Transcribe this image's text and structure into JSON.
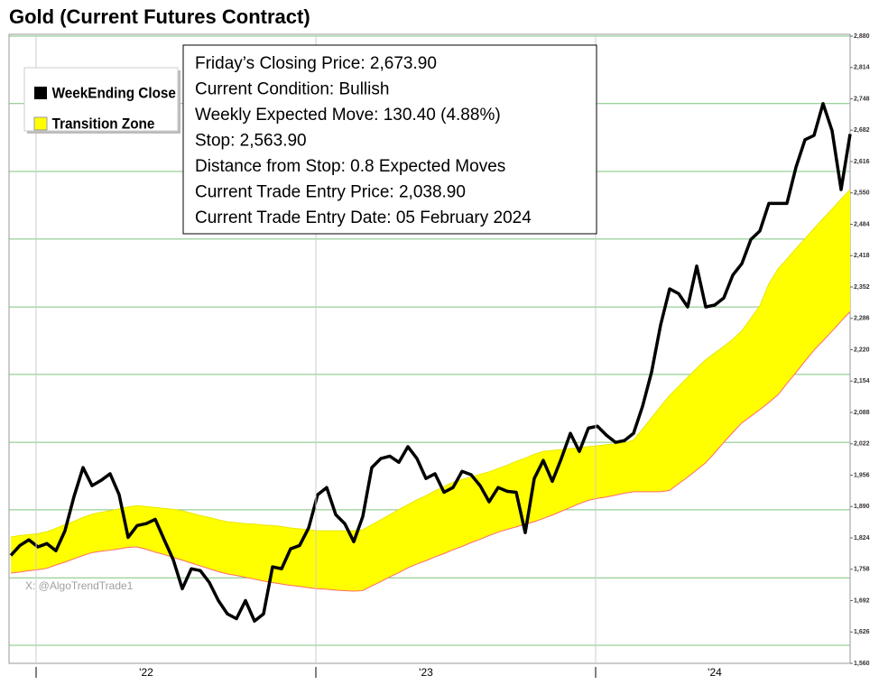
{
  "chart_data": {
    "type": "line",
    "title": "Gold (Current Futures Contract)",
    "watermark": "X: @AlgoTrendTrade1",
    "info_box": [
      "Friday’s Closing Price: 2,673.90",
      "Current Condition: Bullish",
      "Weekly Expected Move: 130.40 (4.88%)",
      "Stop: 2,563.90",
      "Distance from Stop: 0.8 Expected Moves",
      "Current Trade Entry Price: 2,038.90",
      "Current Trade Entry Date: 05 February 2024"
    ],
    "categories": [
      null,
      null,
      null,
      null,
      null,
      null,
      null,
      null,
      null,
      null,
      null,
      null,
      null,
      null,
      null,
      "'22",
      null,
      null,
      null,
      null,
      null,
      null,
      null,
      null,
      null,
      null,
      null,
      null,
      null,
      null,
      null,
      null,
      null,
      null,
      null,
      null,
      null,
      null,
      null,
      null,
      null,
      null,
      null,
      null,
      null,
      null,
      "'23",
      null,
      null,
      null,
      null,
      null,
      null,
      null,
      null,
      null,
      null,
      null,
      null,
      null,
      null,
      null,
      null,
      null,
      null,
      null,
      null,
      null,
      null,
      null,
      null,
      null,
      null,
      null,
      null,
      null,
      null,
      null,
      "'24",
      null,
      null,
      null,
      null,
      null,
      null,
      null,
      null,
      null,
      null,
      null,
      null,
      null,
      null,
      null
    ],
    "series": [
      {
        "name": "WeekEnding Close",
        "color": "#000000",
        "values": [
          1787,
          1808,
          1820,
          1805,
          1812,
          1797,
          1839,
          1911,
          1972,
          1934,
          1945,
          1959,
          1915,
          1825,
          1850,
          1854,
          1863,
          1820,
          1778,
          1717,
          1759,
          1755,
          1730,
          1692,
          1664,
          1654,
          1692,
          1649,
          1664,
          1763,
          1759,
          1801,
          1808,
          1845,
          1915,
          1930,
          1873,
          1854,
          1816,
          1869,
          1972,
          1991,
          1996,
          1983,
          2016,
          1991,
          1949,
          1959,
          1920,
          1930,
          1964,
          1957,
          1934,
          1900,
          1930,
          1922,
          1920,
          1835,
          1949,
          1987,
          1943,
          1991,
          2044,
          2006,
          2055,
          2059,
          2040,
          2025,
          2029,
          2044,
          2101,
          2173,
          2272,
          2348,
          2338,
          2310,
          2396,
          2310,
          2314,
          2329,
          2377,
          2401,
          2452,
          2470,
          2528,
          2528,
          2528,
          2604,
          2662,
          2671,
          2738,
          2681,
          2557,
          2673.9
        ]
      },
      {
        "name": "Transition Zone",
        "color": "#ffff00",
        "edge_color": "#ff6a6a",
        "upper": [
          1826,
          1829,
          1831,
          1833,
          1837,
          1844,
          1852,
          1859,
          1867,
          1874,
          1878,
          1881,
          1885,
          1889,
          1892,
          1890,
          1888,
          1886,
          1884,
          1881,
          1876,
          1871,
          1867,
          1862,
          1858,
          1856,
          1854,
          1853,
          1851,
          1850,
          1848,
          1845,
          1843,
          1841,
          1839,
          1839,
          1839,
          1839,
          1839,
          1841,
          1852,
          1862,
          1873,
          1884,
          1894,
          1904,
          1913,
          1923,
          1932,
          1941,
          1947,
          1952,
          1958,
          1963,
          1970,
          1977,
          1985,
          1992,
          2000,
          2006,
          2008,
          2010,
          2012,
          2014,
          2016,
          2018,
          2020,
          2022,
          2024,
          2030,
          2053,
          2077,
          2101,
          2124,
          2143,
          2162,
          2181,
          2199,
          2213,
          2227,
          2242,
          2260,
          2286,
          2313,
          2359,
          2390,
          2411,
          2433,
          2454,
          2475,
          2496,
          2516,
          2537,
          2557
        ],
        "lower": [
          1750,
          1752,
          1755,
          1757,
          1760,
          1767,
          1773,
          1780,
          1787,
          1793,
          1796,
          1798,
          1801,
          1804,
          1805,
          1800,
          1794,
          1789,
          1783,
          1777,
          1771,
          1765,
          1759,
          1753,
          1748,
          1745,
          1741,
          1737,
          1733,
          1730,
          1727,
          1724,
          1722,
          1719,
          1717,
          1716,
          1714,
          1713,
          1712,
          1713,
          1723,
          1732,
          1742,
          1751,
          1761,
          1769,
          1776,
          1784,
          1791,
          1799,
          1806,
          1814,
          1821,
          1829,
          1836,
          1842,
          1847,
          1853,
          1858,
          1865,
          1872,
          1880,
          1888,
          1896,
          1903,
          1907,
          1910,
          1914,
          1918,
          1921,
          1921,
          1921,
          1921,
          1924,
          1938,
          1952,
          1967,
          1982,
          2003,
          2025,
          2046,
          2066,
          2080,
          2094,
          2109,
          2125,
          2149,
          2172,
          2196,
          2219,
          2239,
          2259,
          2280,
          2300
        ]
      }
    ],
    "ylim": [
      1560,
      2880
    ],
    "yticks": [
      {
        "value": 1560,
        "label": "1,560"
      },
      {
        "value": 1626,
        "label": "1,626"
      },
      {
        "value": 1692,
        "label": "1,692"
      },
      {
        "value": 1758,
        "label": "1,758"
      },
      {
        "value": 1824,
        "label": "1,824"
      },
      {
        "value": 1890,
        "label": "1,890"
      },
      {
        "value": 1956,
        "label": "1,956"
      },
      {
        "value": 2022,
        "label": "2,022"
      },
      {
        "value": 2088,
        "label": "2,088"
      },
      {
        "value": 2154,
        "label": "2,154"
      },
      {
        "value": 2220,
        "label": "2,220"
      },
      {
        "value": 2286,
        "label": "2,286"
      },
      {
        "value": 2352,
        "label": "2,352"
      },
      {
        "value": 2418,
        "label": "2,418"
      },
      {
        "value": 2484,
        "label": "2,484"
      },
      {
        "value": 2550,
        "label": "2,550"
      },
      {
        "value": 2616,
        "label": "2,616"
      },
      {
        "value": 2682,
        "label": "2,682"
      },
      {
        "value": 2748,
        "label": "2,748"
      },
      {
        "value": 2814,
        "label": "2,814"
      },
      {
        "value": 2880,
        "label": "2,880"
      }
    ],
    "reference_lines": [
      2880,
      2738,
      2595,
      2453,
      2310,
      2168,
      2025,
      1883,
      1740,
      1598
    ],
    "reference_color": "#7cc47c",
    "legend": "upper-left"
  }
}
